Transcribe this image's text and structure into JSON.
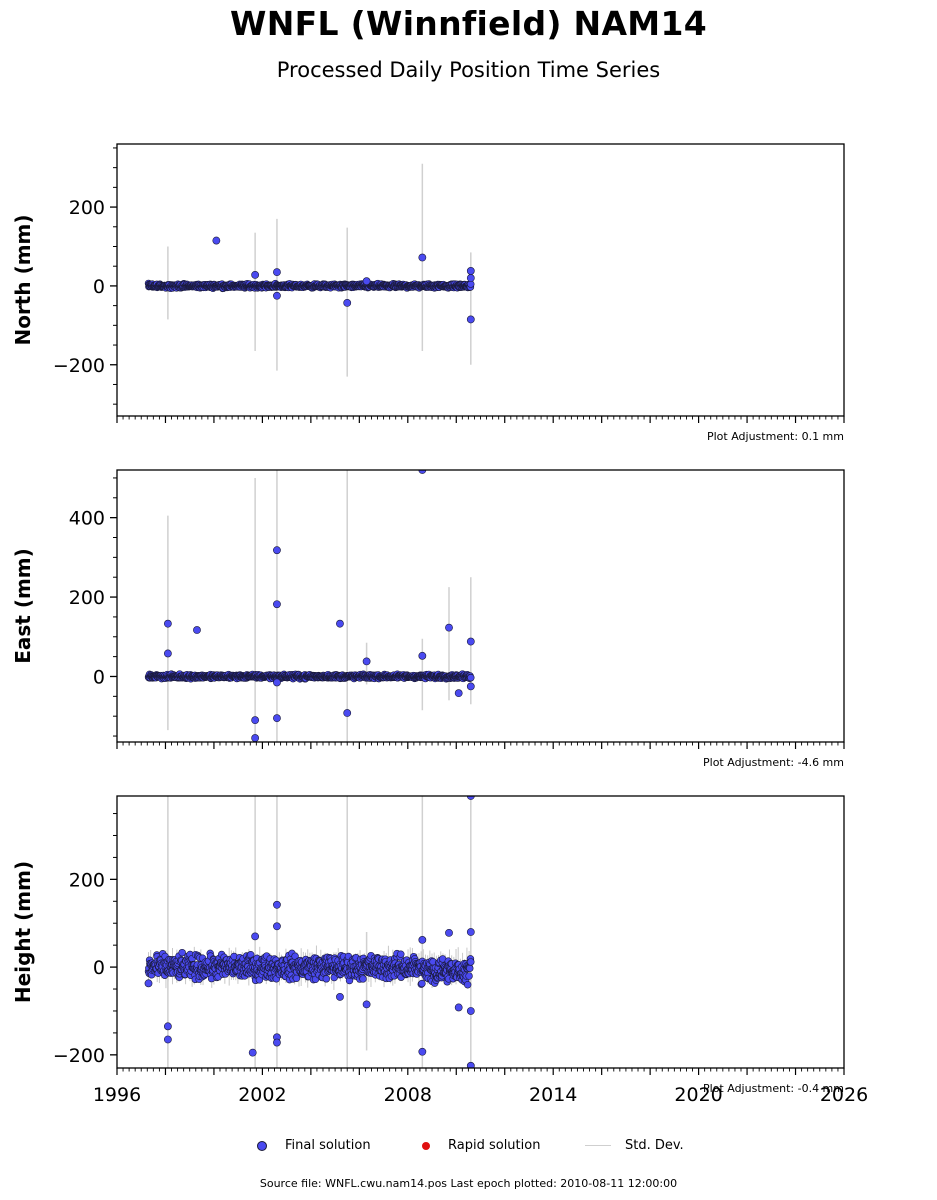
{
  "title": "WNFL (Winnfield) NAM14",
  "subtitle": "Processed Daily Position Time Series",
  "legend": {
    "final": "Final solution",
    "rapid": "Rapid solution",
    "stddev": "Std. Dev."
  },
  "source": "Source file: WNFL.cwu.nam14.pos  Last epoch plotted: 2010-08-11 12:00:00",
  "colors": {
    "final": "#4a4af0",
    "rapid": "#e01010",
    "stddev": "#d0d0d0",
    "edge": "#1a1a3a"
  },
  "chart_data": [
    {
      "type": "scatter",
      "ylabel": "North (mm)",
      "adjustment": "Plot Adjustment: 0.1 mm",
      "xlim": [
        1996,
        2026
      ],
      "ylim": [
        -330,
        360
      ],
      "yticks": [
        -200,
        0,
        200
      ],
      "ytick_labels": [
        "−200",
        "0",
        "200"
      ],
      "span": [
        1997.3,
        2010.6
      ],
      "noise": 4,
      "outliers": [
        [
          2000.1,
          115
        ],
        [
          2001.7,
          28
        ],
        [
          2002.6,
          35
        ],
        [
          2002.6,
          -25
        ],
        [
          2005.5,
          -43
        ],
        [
          2006.3,
          12
        ],
        [
          2008.6,
          72
        ],
        [
          2010.6,
          38
        ],
        [
          2010.6,
          -85
        ],
        [
          2010.6,
          20
        ]
      ],
      "errorbars": [
        [
          1998.1,
          -85,
          100
        ],
        [
          2001.7,
          -165,
          135
        ],
        [
          2002.6,
          -215,
          170
        ],
        [
          2005.5,
          -230,
          148
        ],
        [
          2008.6,
          -165,
          310
        ],
        [
          2010.6,
          -200,
          85
        ]
      ]
    },
    {
      "type": "scatter",
      "ylabel": "East (mm)",
      "adjustment": "Plot Adjustment: -4.6 mm",
      "xlim": [
        1996,
        2026
      ],
      "ylim": [
        -165,
        520
      ],
      "yticks": [
        0,
        200,
        400
      ],
      "ytick_labels": [
        "0",
        "200",
        "400"
      ],
      "span": [
        1997.3,
        2010.6
      ],
      "noise": 4,
      "outliers": [
        [
          1998.1,
          133
        ],
        [
          1998.1,
          58
        ],
        [
          1999.3,
          117
        ],
        [
          2001.7,
          -110
        ],
        [
          2001.7,
          -155
        ],
        [
          2002.6,
          318
        ],
        [
          2002.6,
          182
        ],
        [
          2002.6,
          -105
        ],
        [
          2002.6,
          -15
        ],
        [
          2005.2,
          133
        ],
        [
          2005.5,
          -92
        ],
        [
          2006.3,
          38
        ],
        [
          2008.6,
          520
        ],
        [
          2008.6,
          52
        ],
        [
          2009.7,
          123
        ],
        [
          2010.1,
          -42
        ],
        [
          2010.6,
          88
        ],
        [
          2010.6,
          -25
        ]
      ],
      "errorbars": [
        [
          1998.1,
          -135,
          405
        ],
        [
          2001.7,
          -165,
          500
        ],
        [
          2002.6,
          -165,
          520
        ],
        [
          2005.5,
          -165,
          520
        ],
        [
          2006.3,
          -20,
          85
        ],
        [
          2008.6,
          -85,
          95
        ],
        [
          2009.7,
          -60,
          225
        ],
        [
          2010.6,
          -70,
          250
        ]
      ]
    },
    {
      "type": "scatter",
      "ylabel": "Height (mm)",
      "adjustment": "Plot Adjustment: -0.4 mm",
      "xlim": [
        1996,
        2026
      ],
      "ylim": [
        -230,
        390
      ],
      "yticks": [
        -200,
        0,
        200
      ],
      "ytick_labels": [
        "−200",
        "0",
        "200"
      ],
      "xticks": [
        1996,
        2002,
        2008,
        2014,
        2020,
        2026
      ],
      "xtick_labels": [
        "1996",
        "2002",
        "2008",
        "2014",
        "2020",
        "2026"
      ],
      "span": [
        1997.3,
        2010.6
      ],
      "noise": 22,
      "outliers": [
        [
          1997.3,
          -37
        ],
        [
          1998.1,
          -135
        ],
        [
          1998.1,
          -165
        ],
        [
          2001.6,
          -195
        ],
        [
          2001.7,
          70
        ],
        [
          2002.6,
          142
        ],
        [
          2002.6,
          93
        ],
        [
          2002.6,
          -160
        ],
        [
          2002.6,
          -172
        ],
        [
          2005.2,
          -68
        ],
        [
          2006.3,
          -85
        ],
        [
          2008.6,
          62
        ],
        [
          2008.6,
          -193
        ],
        [
          2009.7,
          78
        ],
        [
          2010.1,
          -92
        ],
        [
          2010.6,
          390
        ],
        [
          2010.6,
          80
        ],
        [
          2010.6,
          -100
        ],
        [
          2010.6,
          -225
        ]
      ],
      "errorbars": [
        [
          1998.1,
          -230,
          390
        ],
        [
          2001.7,
          -230,
          390
        ],
        [
          2002.6,
          -230,
          390
        ],
        [
          2005.5,
          -230,
          390
        ],
        [
          2006.3,
          -190,
          80
        ],
        [
          2008.6,
          -230,
          390
        ],
        [
          2010.6,
          -230,
          390
        ]
      ]
    }
  ]
}
